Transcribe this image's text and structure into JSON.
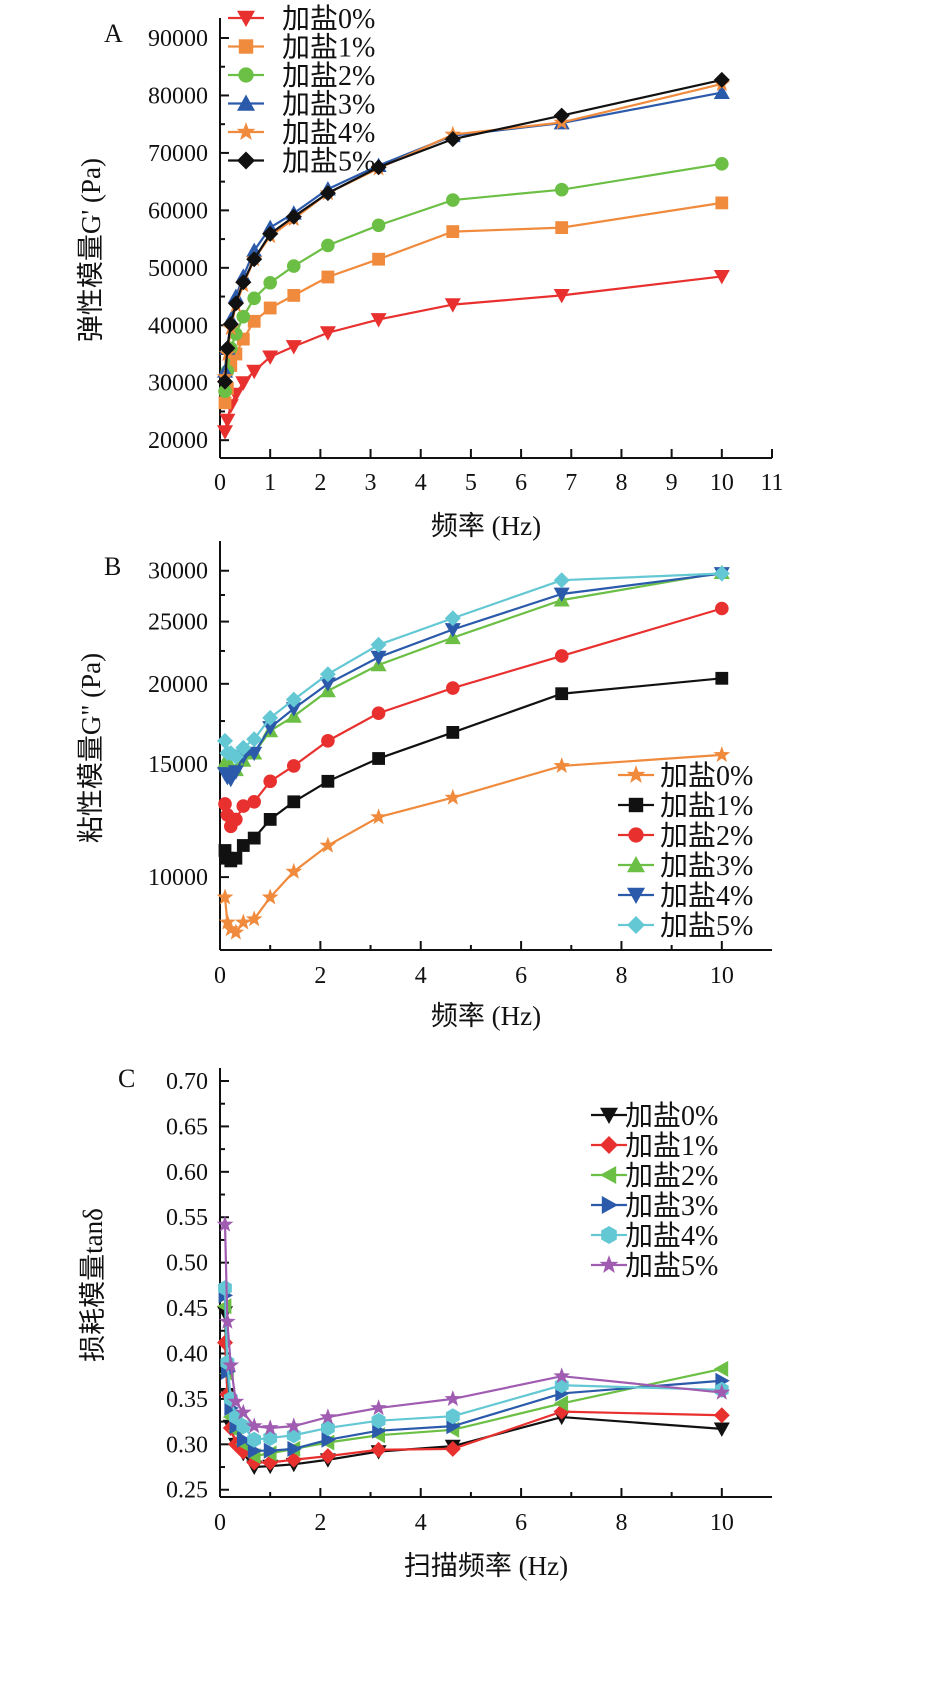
{
  "chart_data": [
    {
      "type": "line",
      "panel_label": "A",
      "xlabel": "频率 (Hz)",
      "ylabel": "弹性模量G' (Pa)",
      "xlim": [
        0,
        11
      ],
      "ylim": [
        16900,
        90000
      ],
      "y_scale": "linear",
      "xticks": [
        0,
        1,
        2,
        3,
        4,
        5,
        6,
        7,
        8,
        9,
        10,
        11
      ],
      "yticks": [
        20000,
        30000,
        40000,
        50000,
        60000,
        70000,
        80000,
        90000
      ],
      "legend_position": "top-left",
      "x": [
        0.1,
        0.147,
        0.215,
        0.316,
        0.464,
        0.681,
        1,
        1.47,
        2.15,
        3.16,
        4.64,
        6.81,
        10
      ],
      "series": [
        {
          "name": "加盐0%",
          "color": "#e8312f",
          "marker": "triangle-down",
          "values": [
            21500,
            23500,
            26000,
            28000,
            30000,
            32000,
            34500,
            36300,
            38700,
            41000,
            43600,
            45200,
            48500
          ]
        },
        {
          "name": "加盐1%",
          "color": "#f08a3c",
          "marker": "square",
          "values": [
            26500,
            29000,
            33000,
            35000,
            37600,
            40700,
            43000,
            45200,
            48400,
            51500,
            56300,
            57000,
            61300
          ]
        },
        {
          "name": "加盐2%",
          "color": "#6cbf45",
          "marker": "circle",
          "values": [
            28500,
            32000,
            36000,
            38500,
            41500,
            44700,
            47400,
            50300,
            53900,
            57400,
            61800,
            63600,
            68100
          ]
        },
        {
          "name": "加盐3%",
          "color": "#2b5aab",
          "marker": "triangle-up",
          "values": [
            32000,
            36000,
            41000,
            45000,
            48500,
            53000,
            57000,
            59500,
            63700,
            67800,
            73000,
            75200,
            80500
          ]
        },
        {
          "name": "加盐4%",
          "color": "#f08a3c",
          "marker": "star",
          "values": [
            31000,
            35000,
            39500,
            43500,
            47000,
            51500,
            55500,
            58500,
            63000,
            67300,
            73200,
            75300,
            82000
          ]
        },
        {
          "name": "加盐5%",
          "color": "#111111",
          "marker": "diamond",
          "values": [
            30200,
            36000,
            40200,
            43800,
            47500,
            51500,
            55900,
            58900,
            63000,
            67500,
            72400,
            76500,
            82700
          ]
        }
      ]
    },
    {
      "type": "line",
      "panel_label": "B",
      "xlabel": "频率 (Hz)",
      "ylabel": "粘性模量G\" (Pa)",
      "xlim": [
        0,
        11
      ],
      "ylim": [
        7700,
        32900
      ],
      "y_scale": "log",
      "xticks": [
        0,
        2,
        4,
        6,
        8,
        10
      ],
      "yticks": [
        10000,
        15000,
        20000,
        25000,
        30000
      ],
      "legend_position": "bottom-right",
      "x": [
        0.1,
        0.147,
        0.215,
        0.316,
        0.464,
        0.681,
        1,
        1.47,
        2.15,
        3.16,
        4.64,
        6.81,
        10
      ],
      "series": [
        {
          "name": "加盐0%",
          "color": "#f08a3c",
          "marker": "star",
          "values": [
            9300,
            8500,
            8300,
            8200,
            8500,
            8600,
            9300,
            10200,
            11200,
            12400,
            13300,
            14900,
            15500
          ]
        },
        {
          "name": "加盐1%",
          "color": "#111111",
          "marker": "square",
          "values": [
            11000,
            10700,
            10600,
            10700,
            11200,
            11500,
            12300,
            13100,
            14100,
            15300,
            16800,
            19300,
            20400
          ]
        },
        {
          "name": "加盐2%",
          "color": "#e8312f",
          "marker": "circle",
          "values": [
            13000,
            12500,
            12000,
            12300,
            12900,
            13100,
            14100,
            14900,
            16300,
            18000,
            19700,
            22100,
            26200
          ]
        },
        {
          "name": "加盐3%",
          "color": "#6cbf45",
          "marker": "triangle-up",
          "values": [
            15100,
            15200,
            14800,
            14700,
            15200,
            15600,
            16900,
            17800,
            19500,
            21400,
            23600,
            27000,
            29800
          ]
        },
        {
          "name": "加盐4%",
          "color": "#2b5aab",
          "marker": "triangle-down",
          "values": [
            14500,
            14300,
            14200,
            14600,
            15400,
            15600,
            17100,
            18300,
            20000,
            22000,
            24300,
            27600,
            29700
          ]
        },
        {
          "name": "加盐5%",
          "color": "#63c8d4",
          "marker": "diamond",
          "values": [
            16300,
            15600,
            15600,
            15400,
            15900,
            16400,
            17700,
            18900,
            20700,
            23000,
            25300,
            29000,
            29700
          ]
        }
      ]
    },
    {
      "type": "line",
      "panel_label": "C",
      "xlabel": "扫描频率 (Hz)",
      "ylabel": "损耗模量tanδ",
      "xlim": [
        0,
        11
      ],
      "ylim": [
        0.242,
        0.7
      ],
      "y_scale": "linear",
      "xticks": [
        0,
        2,
        4,
        6,
        8,
        10
      ],
      "yticks": [
        0.25,
        0.3,
        0.35,
        0.4,
        0.45,
        0.5,
        0.55,
        0.6,
        0.65,
        0.7
      ],
      "legend_position": "top-right",
      "x": [
        0.1,
        0.147,
        0.215,
        0.316,
        0.464,
        0.681,
        1,
        1.47,
        2.15,
        3.16,
        4.64,
        6.81,
        10
      ],
      "series": [
        {
          "name": "加盐0%",
          "color": "#111111",
          "marker": "triangle-down",
          "values": [
            0.445,
            0.355,
            0.32,
            0.3,
            0.29,
            0.275,
            0.276,
            0.278,
            0.283,
            0.292,
            0.298,
            0.33,
            0.317
          ]
        },
        {
          "name": "加盐1%",
          "color": "#e8312f",
          "marker": "diamond",
          "values": [
            0.412,
            0.355,
            0.318,
            0.3,
            0.292,
            0.28,
            0.28,
            0.283,
            0.287,
            0.294,
            0.295,
            0.336,
            0.332
          ]
        },
        {
          "name": "加盐2%",
          "color": "#6cbf45",
          "marker": "triangle-left",
          "values": [
            0.452,
            0.378,
            0.33,
            0.315,
            0.3,
            0.287,
            0.29,
            0.295,
            0.302,
            0.31,
            0.316,
            0.345,
            0.383
          ]
        },
        {
          "name": "加盐3%",
          "color": "#2b5aab",
          "marker": "triangle-right",
          "values": [
            0.464,
            0.38,
            0.34,
            0.32,
            0.305,
            0.293,
            0.293,
            0.295,
            0.305,
            0.315,
            0.32,
            0.356,
            0.37
          ]
        },
        {
          "name": "加盐4%",
          "color": "#63c8d4",
          "marker": "hexagon",
          "values": [
            0.472,
            0.39,
            0.35,
            0.33,
            0.32,
            0.305,
            0.307,
            0.31,
            0.318,
            0.326,
            0.331,
            0.365,
            0.36
          ]
        },
        {
          "name": "加盐5%",
          "color": "#a05cb0",
          "marker": "star",
          "values": [
            0.542,
            0.435,
            0.387,
            0.347,
            0.335,
            0.32,
            0.318,
            0.32,
            0.33,
            0.34,
            0.35,
            0.375,
            0.357
          ]
        }
      ]
    }
  ]
}
